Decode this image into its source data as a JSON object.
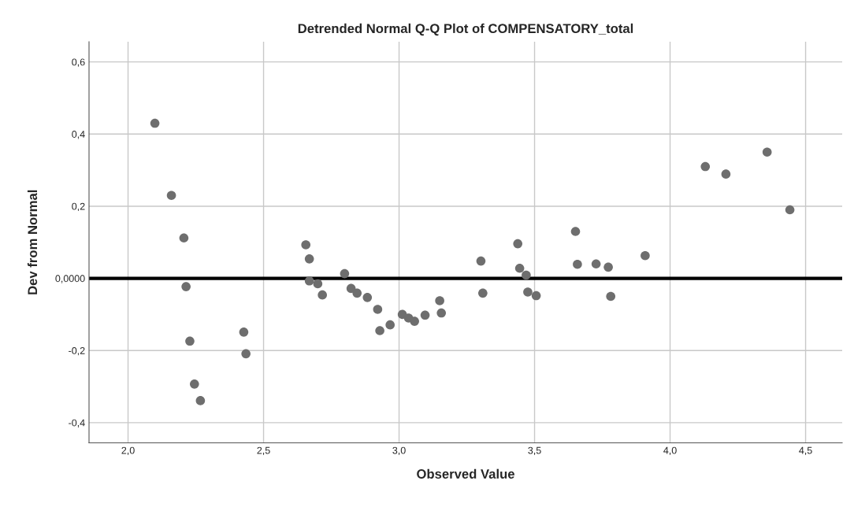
{
  "chart_data": {
    "type": "scatter",
    "title": "Detrended Normal Q-Q Plot of COMPENSATORY_total",
    "xlabel": "Observed Value",
    "ylabel": "Dev from Normal",
    "series": [
      {
        "color": "#6e6e6e",
        "x": [
          2.099,
          2.16,
          2.206,
          2.214,
          2.228,
          2.245,
          2.267,
          2.427,
          2.435,
          2.656,
          2.669,
          2.669,
          2.7,
          2.717,
          2.799,
          2.823,
          2.845,
          2.883,
          2.921,
          2.929,
          2.967,
          3.012,
          3.035,
          3.057,
          3.096,
          3.15,
          3.156,
          3.302,
          3.309,
          3.438,
          3.445,
          3.469,
          3.475,
          3.506,
          3.651,
          3.658,
          3.727,
          3.772,
          3.781,
          3.908,
          4.13,
          4.206,
          4.358,
          4.442
        ],
        "values": [
          0.43,
          0.23,
          0.112,
          -0.023,
          -0.174,
          -0.293,
          -0.339,
          -0.149,
          -0.209,
          0.093,
          0.054,
          -0.007,
          -0.015,
          -0.046,
          0.013,
          -0.028,
          -0.041,
          -0.053,
          -0.086,
          -0.145,
          -0.129,
          -0.1,
          -0.11,
          -0.119,
          -0.102,
          -0.062,
          -0.096,
          0.048,
          -0.041,
          0.096,
          0.028,
          0.009,
          -0.038,
          -0.048,
          0.13,
          0.039,
          0.04,
          0.031,
          -0.05,
          0.063,
          0.31,
          0.289,
          0.35,
          0.19
        ]
      }
    ],
    "xlim": [
      1.856,
      4.635
    ],
    "ylim": [
      -0.456,
      0.656
    ],
    "xticks": [
      {
        "value": 2.0,
        "label": "2,0"
      },
      {
        "value": 2.5,
        "label": "2,5"
      },
      {
        "value": 3.0,
        "label": "3,0"
      },
      {
        "value": 3.5,
        "label": "3,5"
      },
      {
        "value": 4.0,
        "label": "4,0"
      },
      {
        "value": 4.5,
        "label": "4,5"
      }
    ],
    "yticks": [
      {
        "value": -0.4,
        "label": "-0,4"
      },
      {
        "value": -0.2,
        "label": "-0,2"
      },
      {
        "value": 0,
        "label": "0,0000"
      },
      {
        "value": 0.2,
        "label": "0,2"
      },
      {
        "value": 0.4,
        "label": "0,4"
      },
      {
        "value": 0.6,
        "label": "0,6"
      }
    ],
    "ref_lines": [
      {
        "axis": "y",
        "value": 0,
        "color": "#000000",
        "line_style": "solid"
      }
    ],
    "grid": true,
    "marker": "circle",
    "legend": false
  }
}
